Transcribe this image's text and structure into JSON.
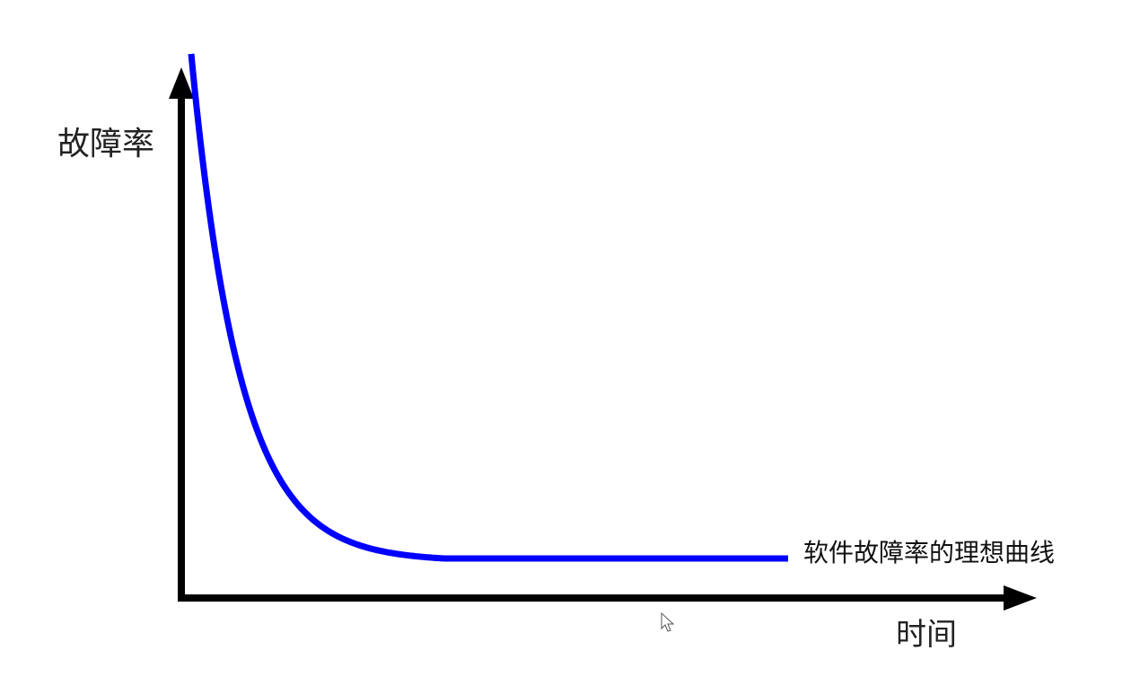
{
  "chart_data": {
    "type": "line",
    "title": "",
    "xlabel": "时间",
    "ylabel": "故障率",
    "grid": false,
    "legend": "none",
    "axes": {
      "x_ticks": false,
      "y_ticks": false
    },
    "series": [
      {
        "name": "软件故障率的理想曲线",
        "color": "#0000ff",
        "shape": "exponential decay to constant plateau",
        "points": [
          {
            "x": 0.0,
            "y": 1.0
          },
          {
            "x": 0.05,
            "y": 0.52
          },
          {
            "x": 0.1,
            "y": 0.3
          },
          {
            "x": 0.2,
            "y": 0.12
          },
          {
            "x": 0.3,
            "y": 0.04
          },
          {
            "x": 0.4,
            "y": 0.0
          },
          {
            "x": 1.0,
            "y": 0.0
          }
        ]
      }
    ],
    "colors": {
      "axis": "#000000",
      "curve": "#0000ff",
      "background": "#ffffff"
    }
  }
}
